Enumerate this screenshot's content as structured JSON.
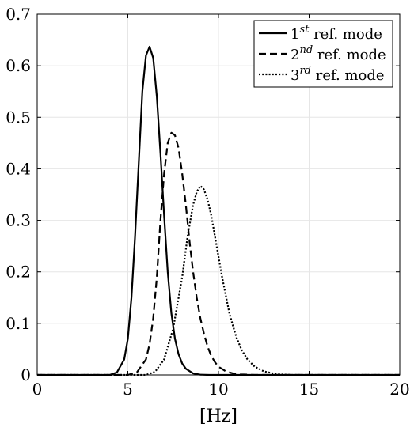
{
  "chart_data": {
    "type": "line",
    "xlabel": "[Hz]",
    "ylabel": "",
    "title": "",
    "xlim": [
      0,
      20
    ],
    "ylim": [
      0,
      0.7
    ],
    "x_ticks": [
      0,
      5,
      10,
      15,
      20
    ],
    "x_tick_labels": [
      "0",
      "5",
      "10",
      "15",
      "20"
    ],
    "y_ticks": [
      0,
      0.1,
      0.2,
      0.3,
      0.4,
      0.5,
      0.6,
      0.7
    ],
    "y_tick_labels": [
      "0",
      "0.1",
      "0.2",
      "0.3",
      "0.4",
      "0.5",
      "0.6",
      "0.7"
    ],
    "grid": true,
    "legend_position": "top-right",
    "series": [
      {
        "name": "1st ref. mode",
        "legend_base": "1",
        "legend_sup": "st",
        "legend_rest": " ref.  mode",
        "style": "solid",
        "x": [
          0,
          4.0,
          4.4,
          4.8,
          5.0,
          5.2,
          5.4,
          5.6,
          5.8,
          6.0,
          6.2,
          6.4,
          6.6,
          6.8,
          7.0,
          7.2,
          7.4,
          7.6,
          7.8,
          8.0,
          8.2,
          8.6,
          9.0,
          9.5,
          10.0,
          20
        ],
        "y": [
          0,
          0.0,
          0.005,
          0.03,
          0.07,
          0.15,
          0.27,
          0.41,
          0.55,
          0.62,
          0.637,
          0.615,
          0.54,
          0.43,
          0.31,
          0.2,
          0.12,
          0.07,
          0.04,
          0.022,
          0.012,
          0.003,
          0.0005,
          0.0,
          0.0,
          0.0
        ]
      },
      {
        "name": "2nd ref. mode",
        "legend_base": "2",
        "legend_sup": "nd",
        "legend_rest": " ref.  mode",
        "style": "dashed",
        "x": [
          0,
          5.0,
          5.5,
          6.0,
          6.2,
          6.4,
          6.6,
          6.8,
          7.0,
          7.2,
          7.4,
          7.6,
          7.8,
          8.0,
          8.2,
          8.4,
          8.6,
          8.8,
          9.0,
          9.2,
          9.4,
          9.6,
          9.8,
          10.0,
          10.4,
          10.8,
          11.2,
          12.0,
          20
        ],
        "y": [
          0,
          0.0,
          0.005,
          0.03,
          0.06,
          0.11,
          0.19,
          0.3,
          0.39,
          0.45,
          0.47,
          0.465,
          0.44,
          0.39,
          0.33,
          0.26,
          0.2,
          0.15,
          0.11,
          0.08,
          0.055,
          0.037,
          0.025,
          0.016,
          0.007,
          0.003,
          0.001,
          0.0,
          0.0
        ]
      },
      {
        "name": "3rd ref. mode",
        "legend_base": "3",
        "legend_sup": "rd",
        "legend_rest": " ref.  mode",
        "style": "dotted",
        "x": [
          0,
          6.0,
          6.5,
          7.0,
          7.5,
          8.0,
          8.3,
          8.6,
          8.8,
          9.0,
          9.2,
          9.4,
          9.6,
          9.8,
          10.0,
          10.2,
          10.4,
          10.6,
          10.8,
          11.0,
          11.3,
          11.6,
          12.0,
          12.5,
          13.0,
          13.5,
          14.0,
          20
        ],
        "y": [
          0,
          0.0,
          0.006,
          0.03,
          0.09,
          0.19,
          0.27,
          0.33,
          0.355,
          0.367,
          0.36,
          0.34,
          0.31,
          0.27,
          0.23,
          0.19,
          0.155,
          0.12,
          0.095,
          0.072,
          0.047,
          0.03,
          0.016,
          0.007,
          0.003,
          0.001,
          0.0,
          0.0
        ]
      }
    ]
  }
}
